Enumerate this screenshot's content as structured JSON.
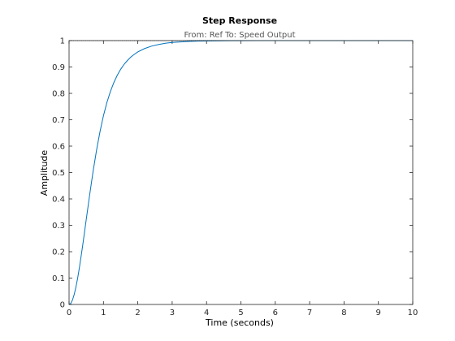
{
  "chart_data": {
    "type": "line",
    "title": "Step Response",
    "subtitle": "From: Ref  To: Speed Output",
    "xlabel": "Time (seconds)",
    "ylabel": "Amplitude",
    "xlim": [
      0,
      10
    ],
    "ylim": [
      0,
      1
    ],
    "x_ticks": [
      0,
      1,
      2,
      3,
      4,
      5,
      6,
      7,
      8,
      9,
      10
    ],
    "y_ticks": [
      0,
      0.1,
      0.2,
      0.3,
      0.4,
      0.5,
      0.6,
      0.7,
      0.8,
      0.9,
      1
    ],
    "x_tick_labels": [
      "0",
      "1",
      "2",
      "3",
      "4",
      "5",
      "6",
      "7",
      "8",
      "9",
      "10"
    ],
    "y_tick_labels": [
      "0",
      "0.1",
      "0.2",
      "0.3",
      "0.4",
      "0.5",
      "0.6",
      "0.7",
      "0.8",
      "0.9",
      "1"
    ],
    "grid": false,
    "reference_line": {
      "y": 1,
      "style": "dotted",
      "color": "#000000"
    },
    "series": [
      {
        "color": "#0072bd",
        "x": [
          0,
          0.05,
          0.1,
          0.15,
          0.2,
          0.25,
          0.3,
          0.35,
          0.4,
          0.45,
          0.5,
          0.55,
          0.6,
          0.65,
          0.7,
          0.8,
          0.9,
          1.0,
          1.1,
          1.2,
          1.3,
          1.4,
          1.5,
          1.6,
          1.7,
          1.8,
          1.9,
          2.0,
          2.2,
          2.4,
          2.6,
          2.8,
          3.0,
          3.25,
          3.5,
          3.75,
          4.0,
          4.25,
          4.5,
          4.75,
          5.0,
          5.5,
          6.0,
          6.5,
          7.0,
          8.0,
          9.0,
          10.0
        ],
        "y": [
          0,
          0.004,
          0.017,
          0.038,
          0.066,
          0.1,
          0.139,
          0.182,
          0.227,
          0.274,
          0.322,
          0.369,
          0.416,
          0.461,
          0.505,
          0.585,
          0.655,
          0.715,
          0.765,
          0.806,
          0.84,
          0.868,
          0.891,
          0.91,
          0.925,
          0.938,
          0.948,
          0.957,
          0.97,
          0.979,
          0.985,
          0.99,
          0.993,
          0.995,
          0.997,
          0.998,
          0.9985,
          0.999,
          0.9994,
          0.9996,
          0.9997,
          0.9999,
          1.0,
          1.0,
          1.0,
          1.0,
          1.0,
          1.0
        ]
      }
    ]
  }
}
